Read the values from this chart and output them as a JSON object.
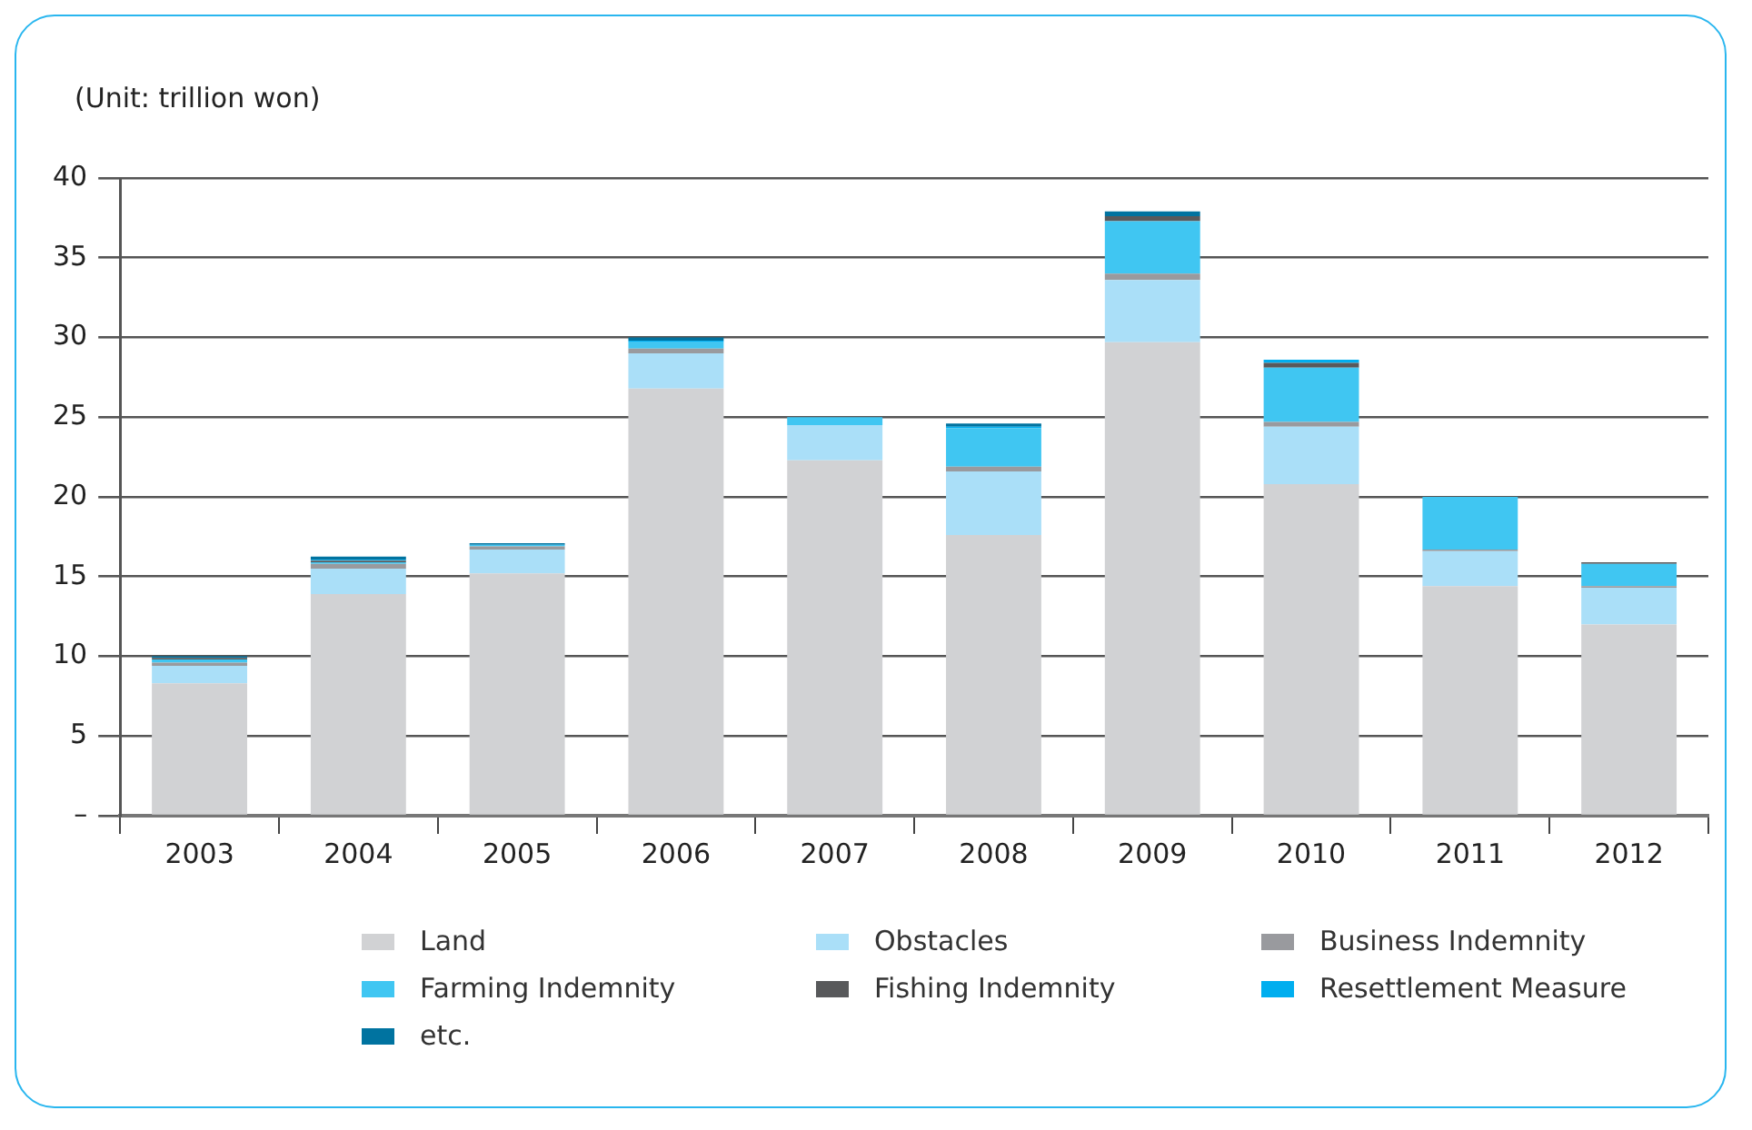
{
  "chart_data": {
    "type": "bar",
    "stacked": true,
    "ylabel": "(Unit: trillion won)",
    "categories": [
      "2003",
      "2004",
      "2005",
      "2006",
      "2007",
      "2008",
      "2009",
      "2010",
      "2011",
      "2012"
    ],
    "series": [
      {
        "name": "Land",
        "color": "#d1d2d4",
        "values": [
          8.3,
          13.9,
          15.2,
          26.8,
          22.3,
          17.6,
          29.7,
          20.8,
          14.4,
          12.0
        ]
      },
      {
        "name": "Obstacles",
        "color": "#aadff8",
        "values": [
          1.1,
          1.6,
          1.5,
          2.2,
          2.2,
          4.0,
          3.9,
          3.6,
          2.2,
          2.3
        ]
      },
      {
        "name": "Business Indemnity",
        "color": "#999a9e",
        "values": [
          0.2,
          0.3,
          0.2,
          0.3,
          0,
          0.3,
          0.4,
          0.3,
          0.1,
          0.1
        ]
      },
      {
        "name": "Farming Indemnity",
        "color": "#40c6f2",
        "values": [
          0.2,
          0.1,
          0.1,
          0.4,
          0.5,
          2.4,
          3.3,
          3.4,
          3.3,
          1.4
        ]
      },
      {
        "name": "Fishing Indemnity",
        "color": "#58595b",
        "values": [
          0.1,
          0.1,
          0,
          0,
          0,
          0,
          0.3,
          0.3,
          0,
          0.1
        ]
      },
      {
        "name": "Resettlement Measure",
        "color": "#00aeef",
        "values": [
          0,
          0.05,
          0,
          0.1,
          0,
          0.1,
          0,
          0.2,
          0,
          0
        ]
      },
      {
        "name": "etc.",
        "color": "#0073a0",
        "values": [
          0.1,
          0.2,
          0.1,
          0.2,
          0,
          0.2,
          0.3,
          0,
          0,
          0
        ]
      }
    ],
    "ylim": [
      0,
      40
    ],
    "yticks": [
      {
        "value": 0,
        "label": "–"
      },
      5,
      10,
      15,
      20,
      25,
      30,
      35,
      40
    ],
    "grid": "y",
    "legend": "bottom"
  }
}
